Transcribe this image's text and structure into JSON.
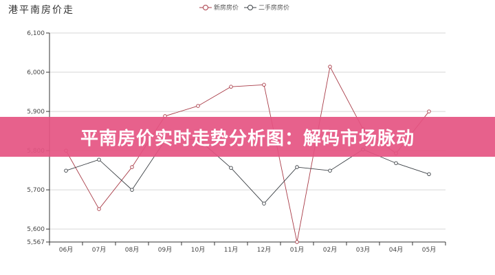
{
  "chart_data": {
    "type": "line",
    "title": "港平南房价走",
    "categories": [
      "06月",
      "07月",
      "08月",
      "09月",
      "10月",
      "11月",
      "12月",
      "01月",
      "02月",
      "03月",
      "04月",
      "05月"
    ],
    "series": [
      {
        "name": "新房房价",
        "color": "#a83a46",
        "values": [
          5800,
          5651,
          5758,
          5888,
          5914,
          5963,
          5968,
          5567,
          6014,
          5855,
          5793,
          5900
        ]
      },
      {
        "name": "二手房房价",
        "color": "#3a3f44",
        "values": [
          5749,
          5777,
          5700,
          5826,
          5830,
          5756,
          5665,
          5758,
          5749,
          5803,
          5768,
          5740
        ]
      }
    ],
    "y_ticks": [
      "5,567",
      "5,600",
      "5,700",
      "5,800",
      "5,900",
      "6,000",
      "6,100"
    ],
    "y_tick_values": [
      5567,
      5600,
      5700,
      5800,
      5900,
      6000,
      6100
    ],
    "ylim": [
      5567,
      6100
    ],
    "grid": true,
    "legend_position": "top-center"
  },
  "banner": {
    "text": "平南房价实时走势分析图：解码市场脉动",
    "color": "#e55482"
  }
}
